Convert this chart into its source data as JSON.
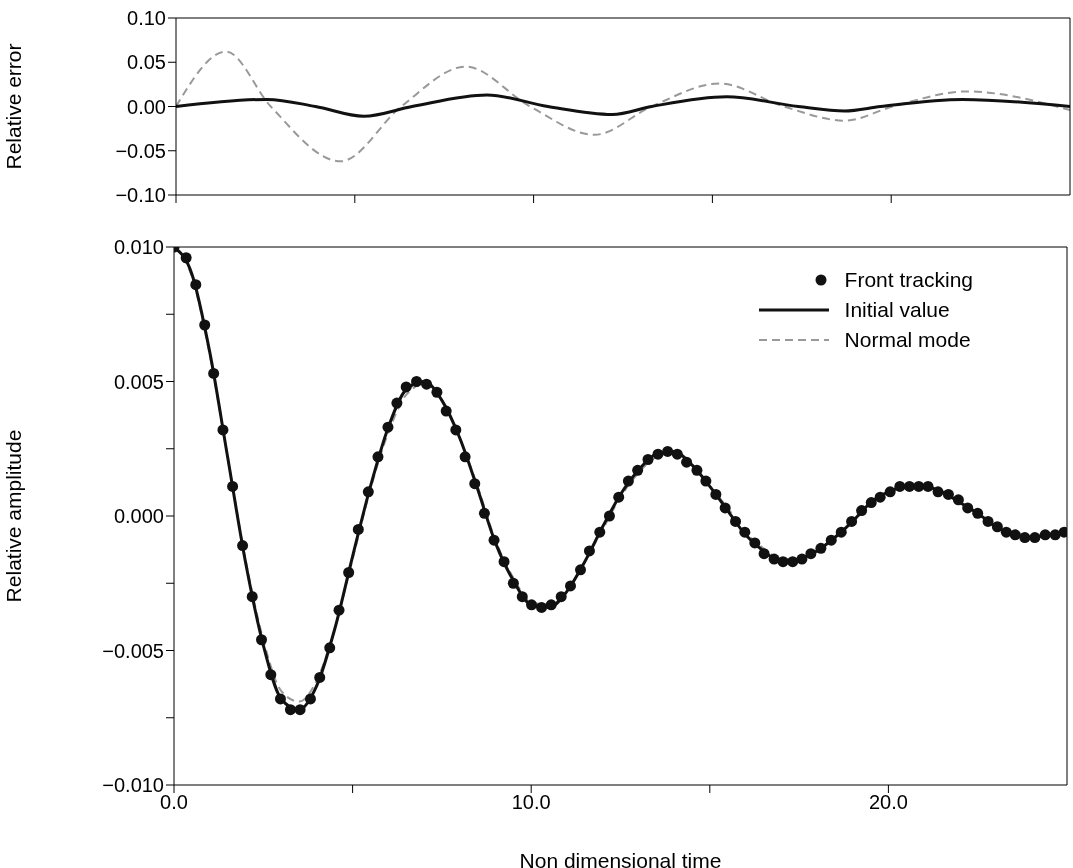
{
  "chart_data": [
    {
      "type": "line",
      "ylabel": "Relative error",
      "xlim": [
        0,
        25
      ],
      "xticks": [
        {
          "value": 0,
          "label": null
        },
        {
          "value": 5,
          "label": null
        },
        {
          "value": 10,
          "label": null
        },
        {
          "value": 15,
          "label": null
        },
        {
          "value": 20,
          "label": null
        }
      ],
      "ylim": [
        -0.1,
        0.1
      ],
      "yticks": [
        {
          "value": -0.1,
          "label": "−0.10"
        },
        {
          "value": -0.05,
          "label": "−0.05"
        },
        {
          "value": 0,
          "label": "0.00"
        },
        {
          "value": 0.05,
          "label": "0.05"
        },
        {
          "value": 0.1,
          "label": "0.10"
        }
      ],
      "tick_labels": "y",
      "series": [
        {
          "color": "#999999",
          "line_style": "dashed",
          "x": [
            0,
            1.4,
            2.65,
            4.6,
            6.3,
            8.1,
            9.9,
            11.7,
            13.3,
            15.2,
            17,
            18.7,
            20.05,
            22.1,
            25
          ],
          "values": [
            0,
            0.062,
            0,
            -0.062,
            0,
            0.045,
            0,
            -0.032,
            0,
            0.026,
            0,
            -0.016,
            0,
            0.017,
            -0.004
          ]
        },
        {
          "color": "#111111",
          "line_style": "solid",
          "x": [
            0,
            2.55,
            3.9,
            5.25,
            6.6,
            8.7,
            10.4,
            12.2,
            13.3,
            15.4,
            17.4,
            18.7,
            19.7,
            22,
            25
          ],
          "values": [
            0,
            0.008,
            0,
            -0.011,
            0,
            0.013,
            0,
            -0.009,
            0,
            0.011,
            0,
            -0.005,
            0,
            0.008,
            0
          ]
        }
      ]
    },
    {
      "type": "line",
      "xlabel": "Non dimensional time",
      "ylabel": "Relative amplitude",
      "xlim": [
        0,
        25
      ],
      "xticks": [
        {
          "value": 0,
          "label": "0.0"
        },
        {
          "value": 5,
          "label": null
        },
        {
          "value": 10,
          "label": "10.0"
        },
        {
          "value": 15,
          "label": null
        },
        {
          "value": 20,
          "label": "20.0"
        }
      ],
      "ylim": [
        -0.01,
        0.01
      ],
      "yticks": [
        {
          "value": -0.01,
          "label": "−0.010"
        },
        {
          "value": -0.0075,
          "label": null
        },
        {
          "value": -0.005,
          "label": "−0.005"
        },
        {
          "value": -0.0025,
          "label": null
        },
        {
          "value": 0,
          "label": "0.000"
        },
        {
          "value": 0.0025,
          "label": null
        },
        {
          "value": 0.005,
          "label": "0.005"
        },
        {
          "value": 0.0075,
          "label": null
        },
        {
          "value": 0.01,
          "label": "0.010"
        }
      ],
      "legend": "top right",
      "series": [
        {
          "name": "Normal mode",
          "color": "#999999",
          "line_style": "dashed",
          "x": [
            0,
            0.5,
            1,
            1.5,
            2,
            2.5,
            3,
            3.5,
            4,
            4.5,
            5,
            5.5,
            6,
            6.5,
            7,
            7.5,
            8,
            8.5,
            9,
            9.5,
            10,
            10.5,
            11,
            11.5,
            12,
            12.5,
            13,
            13.5,
            14,
            14.5,
            15,
            15.5,
            16,
            16.5,
            17,
            17.5,
            18,
            18.5,
            19,
            19.5,
            20,
            20.5,
            21,
            21.5,
            22,
            22.5,
            23,
            23.5,
            24,
            24.5,
            25
          ],
          "values": [
            0.01,
            0.0089,
            0.006,
            0.0022,
            -0.0016,
            -0.0046,
            -0.0065,
            -0.0069,
            -0.0061,
            -0.0042,
            -0.0016,
            0.001,
            0.0031,
            0.0045,
            0.0049,
            0.0043,
            0.0029,
            0.0011,
            -0.0009,
            -0.0023,
            -0.0032,
            -0.0033,
            -0.0028,
            -0.0017,
            -0.0005,
            0.0007,
            0.0016,
            0.0022,
            0.0024,
            0.0019,
            0.0011,
            0.0003,
            -0.0006,
            -0.0012,
            -0.0016,
            -0.0016,
            -0.0013,
            -0.0008,
            -0.0002,
            0.0004,
            0.0009,
            0.0011,
            0.0011,
            0.0009,
            0.0005,
            0.0001,
            -0.0003,
            -0.0006,
            -0.0007,
            -0.0007,
            -0.0006
          ]
        },
        {
          "name": "Initial value",
          "color": "#111111",
          "line_style": "solid",
          "x": [
            0,
            0.5,
            1,
            1.5,
            2,
            2.5,
            3,
            3.5,
            4,
            4.5,
            5,
            5.5,
            6,
            6.5,
            7,
            7.5,
            8,
            8.5,
            9,
            9.5,
            10,
            10.5,
            11,
            11.5,
            12,
            12.5,
            13,
            13.5,
            14,
            14.5,
            15,
            15.5,
            16,
            16.5,
            17,
            17.5,
            18,
            18.5,
            19,
            19.5,
            20,
            20.5,
            21,
            21.5,
            22,
            22.5,
            23,
            23.5,
            24,
            24.5,
            25
          ],
          "values": [
            0.01,
            0.009,
            0.0061,
            0.0022,
            -0.0017,
            -0.0048,
            -0.0068,
            -0.0072,
            -0.0063,
            -0.0042,
            -0.0015,
            0.0011,
            0.0033,
            0.0047,
            0.005,
            0.0043,
            0.0029,
            0.001,
            -0.001,
            -0.0024,
            -0.0033,
            -0.0034,
            -0.0028,
            -0.0017,
            -0.0004,
            0.0008,
            0.0017,
            0.0023,
            0.0024,
            0.0019,
            0.0011,
            0.0002,
            -0.0007,
            -0.0013,
            -0.0017,
            -0.0016,
            -0.0013,
            -0.0008,
            -0.0002,
            0.0005,
            0.0009,
            0.0011,
            0.0011,
            0.0009,
            0.0005,
            0.0001,
            -0.0004,
            -0.0007,
            -0.0008,
            -0.0007,
            -0.0006
          ]
        },
        {
          "type": "scatter",
          "name": "Front tracking",
          "color": "#111111",
          "marker": "circle",
          "x": [
            0,
            0.34,
            0.61,
            0.86,
            1.11,
            1.37,
            1.64,
            1.92,
            2.19,
            2.45,
            2.71,
            2.98,
            3.26,
            3.53,
            3.82,
            4.08,
            4.36,
            4.62,
            4.89,
            5.16,
            5.44,
            5.71,
            5.99,
            6.24,
            6.5,
            6.79,
            7.07,
            7.36,
            7.62,
            7.89,
            8.15,
            8.42,
            8.69,
            8.96,
            9.24,
            9.5,
            9.75,
            10.01,
            10.29,
            10.56,
            10.84,
            11.1,
            11.38,
            11.63,
            11.92,
            12.19,
            12.45,
            12.72,
            12.98,
            13.27,
            13.55,
            13.82,
            14.09,
            14.35,
            14.64,
            14.89,
            15.17,
            15.43,
            15.72,
            15.98,
            16.26,
            16.52,
            16.8,
            17.05,
            17.32,
            17.58,
            17.83,
            18.11,
            18.4,
            18.68,
            18.97,
            19.25,
            19.52,
            19.77,
            20.05,
            20.32,
            20.59,
            20.85,
            21.11,
            21.39,
            21.68,
            21.96,
            22.22,
            22.5,
            22.79,
            23.05,
            23.3,
            23.55,
            23.82,
            24.1,
            24.39,
            24.67,
            24.92
          ],
          "values": [
            0.01,
            0.0096,
            0.0086,
            0.0071,
            0.0053,
            0.0032,
            0.0011,
            -0.0011,
            -0.003,
            -0.0046,
            -0.0059,
            -0.0068,
            -0.0072,
            -0.0072,
            -0.0068,
            -0.006,
            -0.0049,
            -0.0035,
            -0.0021,
            -0.0005,
            0.0009,
            0.0022,
            0.0033,
            0.0042,
            0.0048,
            0.005,
            0.0049,
            0.0046,
            0.0039,
            0.0032,
            0.0022,
            0.0012,
            0.0001,
            -0.0009,
            -0.0017,
            -0.0025,
            -0.003,
            -0.0033,
            -0.0034,
            -0.0033,
            -0.003,
            -0.0026,
            -0.002,
            -0.0013,
            -0.0006,
            0,
            0.0007,
            0.0013,
            0.0017,
            0.0021,
            0.0023,
            0.0024,
            0.0023,
            0.002,
            0.0017,
            0.0013,
            0.0008,
            0.0003,
            -0.0002,
            -0.0006,
            -0.001,
            -0.0014,
            -0.0016,
            -0.0017,
            -0.0017,
            -0.0016,
            -0.0014,
            -0.0012,
            -0.0009,
            -0.0006,
            -0.0002,
            0.0002,
            0.0005,
            0.0007,
            0.0009,
            0.0011,
            0.0011,
            0.0011,
            0.0011,
            0.0009,
            0.0008,
            0.0006,
            0.0003,
            0.0001,
            -0.0002,
            -0.0004,
            -0.0006,
            -0.0007,
            -0.0008,
            -0.0008,
            -0.0007,
            -0.0007,
            -0.0006
          ]
        }
      ]
    }
  ]
}
